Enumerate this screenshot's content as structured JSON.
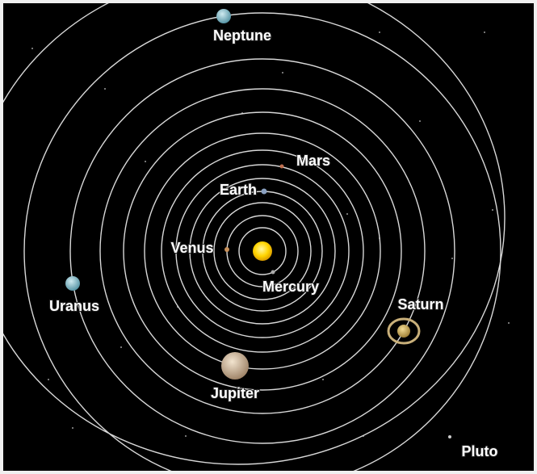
{
  "planets": [
    {
      "label": "Mercury"
    },
    {
      "label": "Venus"
    },
    {
      "label": "Earth"
    },
    {
      "label": "Mars"
    },
    {
      "label": "Jupiter"
    },
    {
      "label": "Saturn"
    },
    {
      "label": "Uranus"
    },
    {
      "label": "Neptune"
    },
    {
      "label": "Pluto"
    }
  ]
}
